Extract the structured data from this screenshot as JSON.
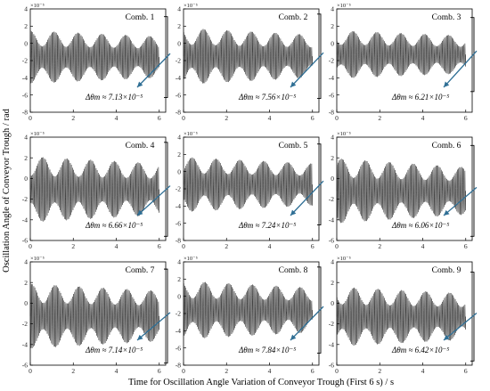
{
  "figure": {
    "xlabel": "Time for Oscillation Angle Variation of Conveyor Trough (First 6 s) / s",
    "ylabel": "Oscillation Angle of Conveyor Trough / rad"
  },
  "chart_data": [
    {
      "type": "line",
      "title": "Comb. 1",
      "annotation": "Δθm ≈ 7.13×10⁻⁵",
      "ylim": [
        -8,
        4
      ],
      "yticks": [
        -8,
        -6,
        -4,
        -2,
        0,
        2,
        4
      ],
      "xlim": [
        0,
        6.3
      ],
      "xticks": [
        0,
        2,
        4,
        6
      ],
      "y_multiplier": "×10⁻⁵",
      "amplitude_start": 6.2,
      "amplitude_end": 4.8,
      "max_y": 3.1,
      "min_y": -6.3
    },
    {
      "type": "line",
      "title": "Comb. 2",
      "annotation": "Δθm ≈ 7.56×10⁻⁵",
      "ylim": [
        -8,
        4
      ],
      "yticks": [
        -8,
        -6,
        -4,
        -2,
        0,
        2,
        4
      ],
      "xlim": [
        0,
        6.3
      ],
      "xticks": [
        0,
        2,
        4,
        6
      ],
      "y_multiplier": "×10⁻⁵",
      "amplitude_start": 6.6,
      "amplitude_end": 5.0,
      "max_y": 3.4,
      "min_y": -6.4
    },
    {
      "type": "line",
      "title": "Comb. 3",
      "annotation": "Δθm ≈ 6.21×10⁻⁵",
      "ylim": [
        -8,
        4
      ],
      "yticks": [
        -8,
        -6,
        -4,
        -2,
        0,
        2,
        4
      ],
      "xlim": [
        0,
        6.3
      ],
      "xticks": [
        0,
        2,
        4,
        6
      ],
      "y_multiplier": "×10⁻⁵",
      "amplitude_start": 5.6,
      "amplitude_end": 4.4,
      "max_y": 3.0,
      "min_y": -5.6
    },
    {
      "type": "line",
      "title": "Comb. 4",
      "annotation": "Δθm ≈ 6.66×10⁻⁵",
      "ylim": [
        -6,
        4
      ],
      "yticks": [
        -6,
        -4,
        -2,
        0,
        2,
        4
      ],
      "xlim": [
        0,
        6.3
      ],
      "xticks": [
        0,
        2,
        4,
        6
      ],
      "y_multiplier": "×10⁻⁵",
      "amplitude_start": 6.4,
      "amplitude_end": 5.0,
      "max_y": 3.5,
      "min_y": -5.6
    },
    {
      "type": "line",
      "title": "Comb. 5",
      "annotation": "Δθm ≈ 7.24×10⁻⁵",
      "ylim": [
        -8,
        4
      ],
      "yticks": [
        -8,
        -6,
        -4,
        -2,
        0,
        2,
        4
      ],
      "xlim": [
        0,
        6.3
      ],
      "xticks": [
        0,
        2,
        4,
        6
      ],
      "y_multiplier": "×10⁻⁵",
      "amplitude_start": 6.4,
      "amplitude_end": 4.9,
      "max_y": 3.2,
      "min_y": -6.2
    },
    {
      "type": "line",
      "title": "Comb. 6",
      "annotation": "Δθm ≈ 6.06×10⁻⁵",
      "ylim": [
        -6,
        4
      ],
      "yticks": [
        -6,
        -4,
        -2,
        0,
        2,
        4
      ],
      "xlim": [
        0,
        6.3
      ],
      "xticks": [
        0,
        2,
        4,
        6
      ],
      "y_multiplier": "×10⁻⁵",
      "amplitude_start": 6.3,
      "amplitude_end": 4.6,
      "max_y": 3.2,
      "min_y": -5.6
    },
    {
      "type": "line",
      "title": "Comb. 7",
      "annotation": "Δθm ≈ 7.14×10⁻⁵",
      "ylim": [
        -6,
        4
      ],
      "yticks": [
        -6,
        -4,
        -2,
        0,
        2,
        4
      ],
      "xlim": [
        0,
        6.3
      ],
      "xticks": [
        0,
        2,
        4,
        6
      ],
      "y_multiplier": "×10⁻⁵",
      "amplitude_start": 6.3,
      "amplitude_end": 4.9,
      "max_y": 3.3,
      "min_y": -5.8
    },
    {
      "type": "line",
      "title": "Comb. 8",
      "annotation": "Δθm ≈ 7.84×10⁻⁵",
      "ylim": [
        -8,
        4
      ],
      "yticks": [
        -8,
        -6,
        -4,
        -2,
        0,
        2,
        4
      ],
      "xlim": [
        0,
        6.3
      ],
      "xticks": [
        0,
        2,
        4,
        6
      ],
      "y_multiplier": "×10⁻⁵",
      "amplitude_start": 6.8,
      "amplitude_end": 5.2,
      "max_y": 3.4,
      "min_y": -6.6
    },
    {
      "type": "line",
      "title": "Comb. 9",
      "annotation": "Δθm ≈ 6.42×10⁻⁵",
      "ylim": [
        -6,
        4
      ],
      "yticks": [
        -6,
        -4,
        -2,
        0,
        2,
        4
      ],
      "xlim": [
        0,
        6.3
      ],
      "xticks": [
        0,
        2,
        4,
        6
      ],
      "y_multiplier": "×10⁻⁵",
      "amplitude_start": 5.8,
      "amplitude_end": 4.5,
      "max_y": 3.0,
      "min_y": -5.6
    }
  ]
}
